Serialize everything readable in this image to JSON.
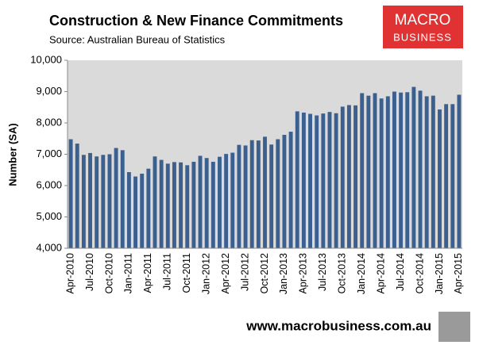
{
  "chart_data": {
    "type": "bar",
    "title": "Construction & New Finance Commitments",
    "subtitle": "Source: Australian Bureau of Statistics",
    "y_label": "Number (SA)",
    "logo": {
      "line1": "MACRO",
      "line2": "BUSINESS"
    },
    "footer": "www.macrobusiness.com.au",
    "color": "#3b5f8f",
    "categories": [
      "Apr-2010",
      null,
      null,
      "Jul-2010",
      null,
      null,
      "Oct-2010",
      null,
      null,
      "Jan-2011",
      null,
      null,
      "Apr-2011",
      null,
      null,
      "Jul-2011",
      null,
      null,
      "Oct-2011",
      null,
      null,
      "Jan-2012",
      null,
      null,
      "Apr-2012",
      null,
      null,
      "Jul-2012",
      null,
      null,
      "Oct-2012",
      null,
      null,
      "Jan-2013",
      null,
      null,
      "Apr-2013",
      null,
      null,
      "Jul-2013",
      null,
      null,
      "Oct-2013",
      null,
      null,
      "Jan-2014",
      null,
      null,
      "Apr-2014",
      null,
      null,
      "Jul-2014",
      null,
      null,
      "Oct-2014",
      null,
      null,
      "Jan-2015",
      null,
      null,
      "Apr-2015"
    ],
    "values": [
      7480,
      7340,
      6980,
      7040,
      6930,
      6980,
      7000,
      7200,
      7130,
      6430,
      6290,
      6380,
      6540,
      6930,
      6820,
      6700,
      6750,
      6740,
      6650,
      6760,
      6950,
      6880,
      6760,
      6920,
      7010,
      7050,
      7300,
      7280,
      7450,
      7440,
      7560,
      7310,
      7480,
      7620,
      7720,
      8370,
      8330,
      8290,
      8240,
      8300,
      8350,
      8310,
      8520,
      8570,
      8560,
      8950,
      8870,
      8950,
      8780,
      8850,
      9000,
      8970,
      8980,
      9150,
      9030,
      8850,
      8870,
      8430,
      8600,
      8600,
      8900
    ],
    "ylim": [
      4000,
      10000
    ],
    "yticks": [
      {
        "value": 4000,
        "label": "4,000"
      },
      {
        "value": 5000,
        "label": "5,000"
      },
      {
        "value": 6000,
        "label": "6,000"
      },
      {
        "value": 7000,
        "label": "7,000"
      },
      {
        "value": 8000,
        "label": "8,000"
      },
      {
        "value": 9000,
        "label": "9,000"
      },
      {
        "value": 10000,
        "label": "10,000"
      }
    ],
    "grid": false
  }
}
